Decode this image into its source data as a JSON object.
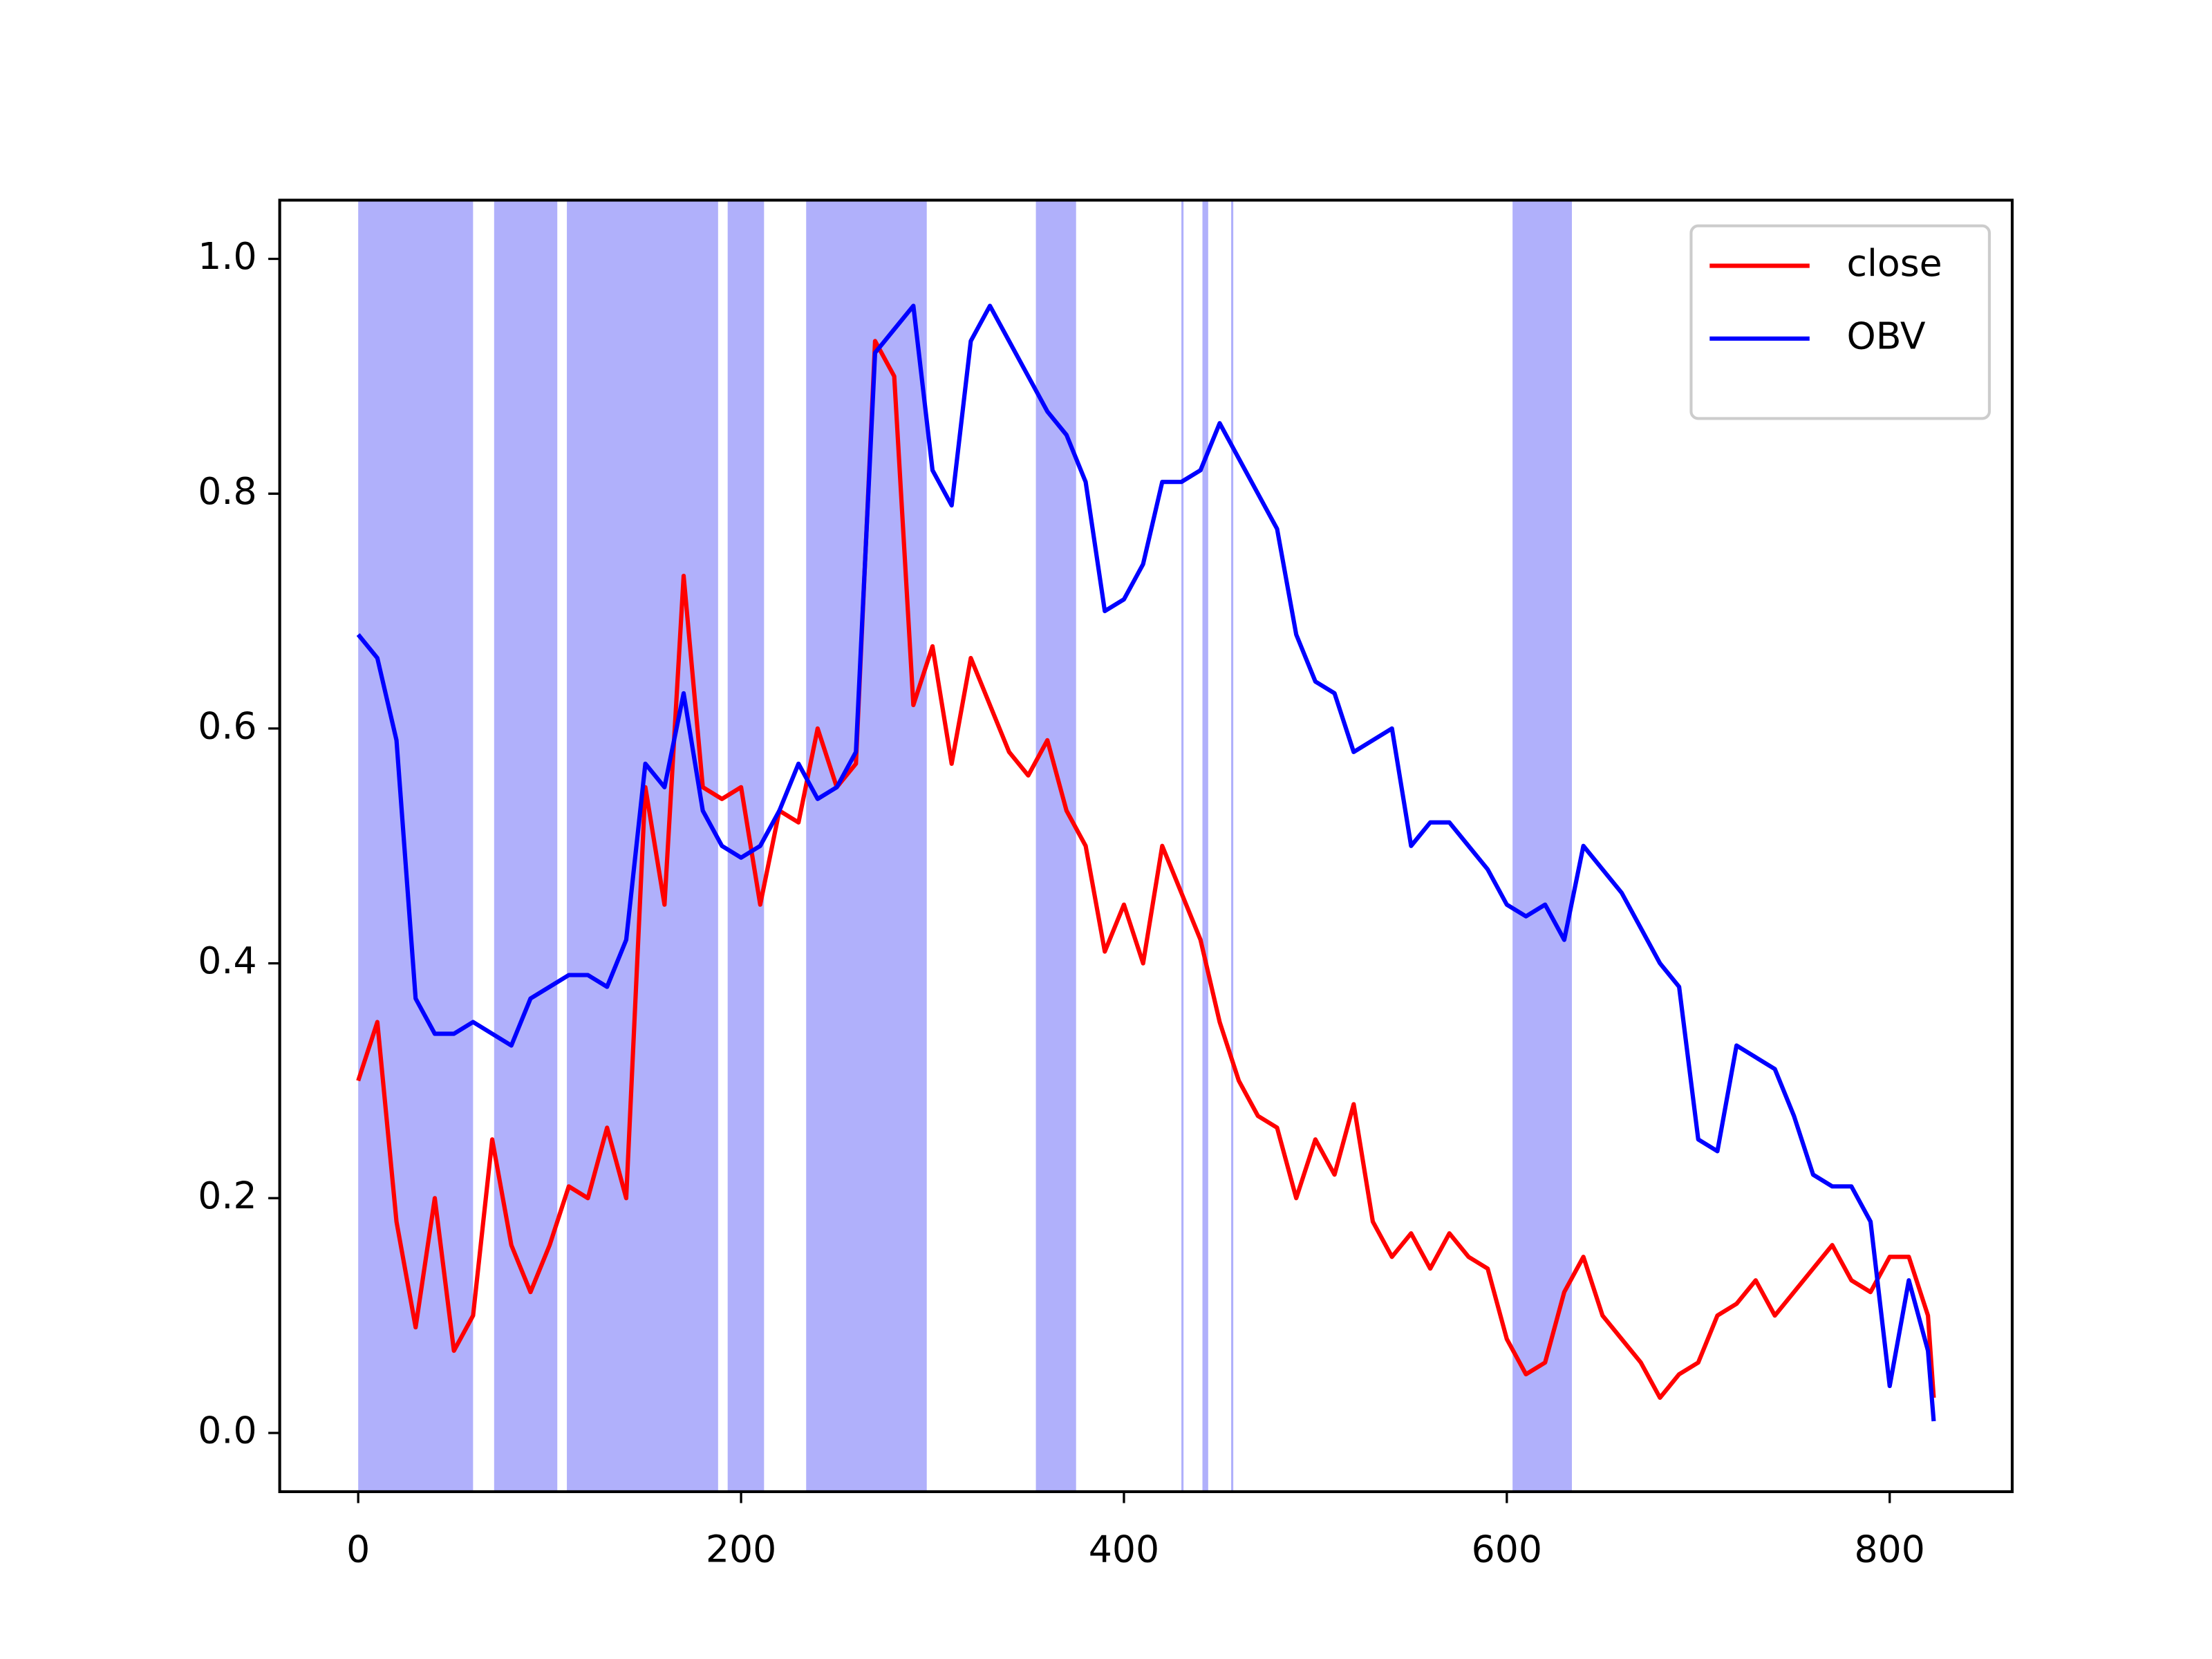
{
  "chart_data": {
    "type": "line",
    "x": [
      0,
      10,
      20,
      30,
      40,
      50,
      60,
      70,
      80,
      90,
      100,
      110,
      120,
      130,
      140,
      150,
      160,
      170,
      180,
      190,
      200,
      210,
      220,
      230,
      240,
      250,
      260,
      270,
      280,
      290,
      300,
      310,
      320,
      330,
      340,
      350,
      360,
      370,
      380,
      390,
      400,
      410,
      420,
      430,
      440,
      450,
      460,
      470,
      480,
      490,
      500,
      510,
      520,
      530,
      540,
      550,
      560,
      570,
      580,
      590,
      600,
      610,
      620,
      630,
      640,
      650,
      660,
      670,
      680,
      690,
      700,
      710,
      720,
      730,
      740,
      750,
      760,
      770,
      780,
      790,
      800,
      810,
      820,
      823
    ],
    "series": [
      {
        "name": "close",
        "color": "#ff0000",
        "values": [
          0.3,
          0.35,
          0.18,
          0.09,
          0.2,
          0.07,
          0.1,
          0.25,
          0.16,
          0.12,
          0.16,
          0.21,
          0.2,
          0.26,
          0.2,
          0.55,
          0.45,
          0.73,
          0.55,
          0.54,
          0.55,
          0.45,
          0.53,
          0.52,
          0.6,
          0.55,
          0.57,
          0.93,
          0.9,
          0.62,
          0.67,
          0.57,
          0.66,
          0.62,
          0.58,
          0.56,
          0.59,
          0.53,
          0.5,
          0.41,
          0.45,
          0.4,
          0.5,
          0.46,
          0.42,
          0.35,
          0.3,
          0.27,
          0.26,
          0.2,
          0.25,
          0.22,
          0.28,
          0.18,
          0.15,
          0.17,
          0.14,
          0.17,
          0.15,
          0.14,
          0.08,
          0.05,
          0.06,
          0.12,
          0.15,
          0.1,
          0.08,
          0.06,
          0.03,
          0.05,
          0.06,
          0.1,
          0.11,
          0.13,
          0.1,
          0.12,
          0.14,
          0.16,
          0.13,
          0.12,
          0.15,
          0.15,
          0.1,
          0.03
        ]
      },
      {
        "name": "OBV",
        "color": "#0000ff",
        "values": [
          0.68,
          0.66,
          0.59,
          0.37,
          0.34,
          0.34,
          0.35,
          0.34,
          0.33,
          0.37,
          0.38,
          0.39,
          0.39,
          0.38,
          0.42,
          0.57,
          0.55,
          0.63,
          0.53,
          0.5,
          0.49,
          0.5,
          0.53,
          0.57,
          0.54,
          0.55,
          0.58,
          0.92,
          0.94,
          0.96,
          0.82,
          0.79,
          0.93,
          0.96,
          0.93,
          0.9,
          0.87,
          0.85,
          0.81,
          0.7,
          0.71,
          0.74,
          0.81,
          0.81,
          0.82,
          0.86,
          0.83,
          0.8,
          0.77,
          0.68,
          0.64,
          0.63,
          0.58,
          0.59,
          0.6,
          0.5,
          0.52,
          0.52,
          0.5,
          0.48,
          0.45,
          0.44,
          0.45,
          0.42,
          0.5,
          0.48,
          0.46,
          0.43,
          0.4,
          0.38,
          0.25,
          0.24,
          0.33,
          0.32,
          0.31,
          0.27,
          0.22,
          0.21,
          0.21,
          0.18,
          0.04,
          0.13,
          0.07,
          0.01
        ]
      }
    ],
    "spans": [
      [
        0,
        60
      ],
      [
        71,
        104
      ],
      [
        109,
        188
      ],
      [
        193,
        212
      ],
      [
        234,
        297
      ],
      [
        354,
        375
      ],
      [
        430,
        430.5
      ],
      [
        441,
        444
      ],
      [
        456,
        457
      ],
      [
        603,
        634
      ]
    ],
    "span_color": "#b0b0fb",
    "xlim": [
      -41,
      864
    ],
    "ylim": [
      -0.05,
      1.05
    ],
    "xticks": [
      0,
      200,
      400,
      600,
      800
    ],
    "yticks": [
      {
        "value": 0,
        "label": "0.0"
      },
      {
        "value": 0.2,
        "label": "0.2"
      },
      {
        "value": 0.4,
        "label": "0.4"
      },
      {
        "value": 0.6,
        "label": "0.6"
      },
      {
        "value": 0.8,
        "label": "0.8"
      },
      {
        "value": 1,
        "label": "1.0"
      }
    ],
    "legend": "upper right"
  }
}
